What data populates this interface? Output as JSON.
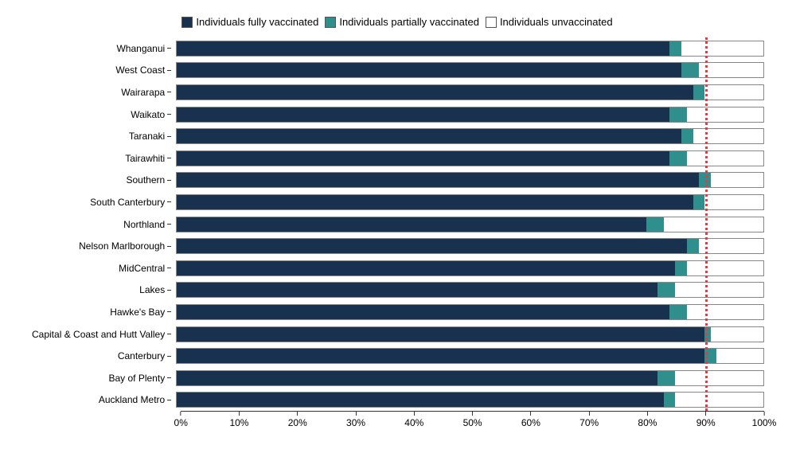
{
  "chart": {
    "type": "stacked-horizontal-bar",
    "background_color": "#ffffff",
    "text_color": "#000000",
    "legend": [
      {
        "label": "Individuals fully vaccinated",
        "color": "#17314f"
      },
      {
        "label": "Individuals partially vaccinated",
        "color": "#2f8f8c"
      },
      {
        "label": "Individuals unvaccinated",
        "color": "#ffffff"
      }
    ],
    "x_axis": {
      "min": 0,
      "max": 100,
      "tick_step": 10,
      "tick_suffix": "%",
      "axis_color": "#333333",
      "label_fontsize": 12
    },
    "y_axis": {
      "label_fontsize": 12
    },
    "reference_line": {
      "value": 90,
      "color": "#e63946",
      "style": "dotted",
      "width": 3
    },
    "bar_border_color": "#888888",
    "rows": [
      {
        "label": "Whanganui",
        "fully": 84,
        "partial": 2
      },
      {
        "label": "West Coast",
        "fully": 86,
        "partial": 3
      },
      {
        "label": "Wairarapa",
        "fully": 88,
        "partial": 2
      },
      {
        "label": "Waikato",
        "fully": 84,
        "partial": 3
      },
      {
        "label": "Taranaki",
        "fully": 86,
        "partial": 2
      },
      {
        "label": "Tairawhiti",
        "fully": 84,
        "partial": 3
      },
      {
        "label": "Southern",
        "fully": 89,
        "partial": 2
      },
      {
        "label": "South Canterbury",
        "fully": 88,
        "partial": 2
      },
      {
        "label": "Northland",
        "fully": 80,
        "partial": 3
      },
      {
        "label": "Nelson Marlborough",
        "fully": 87,
        "partial": 2
      },
      {
        "label": "MidCentral",
        "fully": 85,
        "partial": 2
      },
      {
        "label": "Lakes",
        "fully": 82,
        "partial": 3
      },
      {
        "label": "Hawke's Bay",
        "fully": 84,
        "partial": 3
      },
      {
        "label": "Capital & Coast and Hutt Valley",
        "fully": 90,
        "partial": 1
      },
      {
        "label": "Canterbury",
        "fully": 90,
        "partial": 2
      },
      {
        "label": "Bay of Plenty",
        "fully": 82,
        "partial": 3
      },
      {
        "label": "Auckland Metro",
        "fully": 83,
        "partial": 2
      }
    ]
  }
}
